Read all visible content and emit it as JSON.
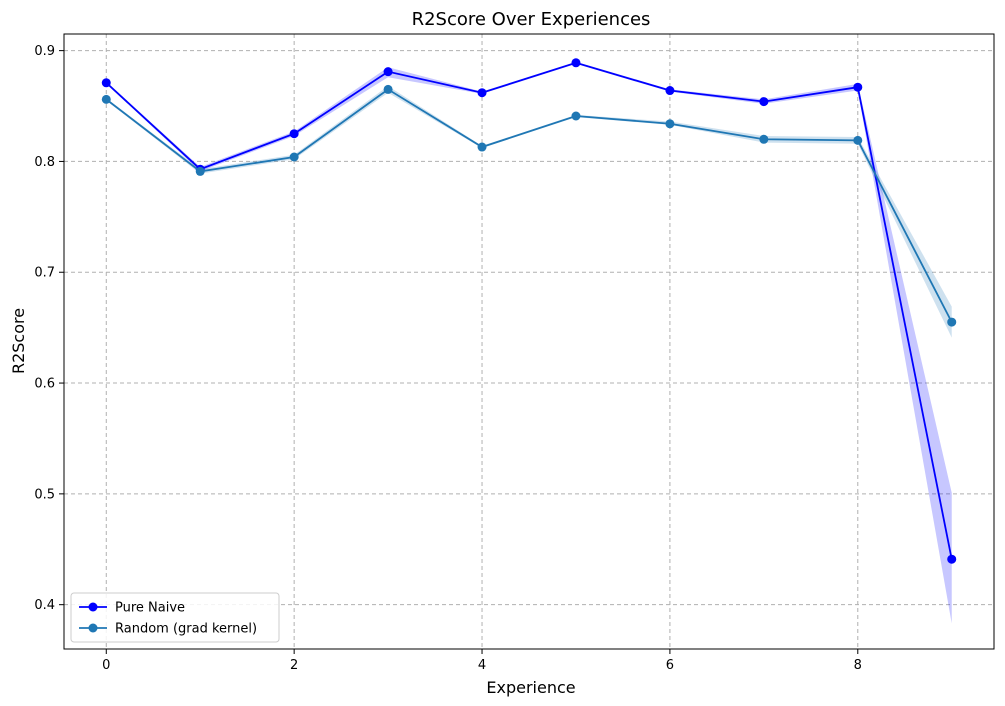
{
  "chart_data": {
    "type": "line",
    "title": "R2Score Over Experiences",
    "xlabel": "Experience",
    "ylabel": "R2Score",
    "xlim": [
      -0.45,
      9.45
    ],
    "ylim": [
      0.36,
      0.915
    ],
    "xticks": [
      0,
      2,
      4,
      6,
      8
    ],
    "yticks": [
      0.4,
      0.5,
      0.6,
      0.7,
      0.8,
      0.9
    ],
    "grid": true,
    "legend_position": "lower-left",
    "x": [
      0,
      1,
      2,
      3,
      4,
      5,
      6,
      7,
      8,
      9
    ],
    "series": [
      {
        "name": "Pure Naive",
        "color": "#0000ff",
        "band_color": "#0000ff",
        "values": [
          0.871,
          0.793,
          0.825,
          0.881,
          0.862,
          0.889,
          0.864,
          0.854,
          0.867,
          0.441
        ],
        "lower": [
          0.87,
          0.791,
          0.823,
          0.876,
          0.861,
          0.888,
          0.863,
          0.852,
          0.864,
          0.383
        ],
        "upper": [
          0.872,
          0.795,
          0.827,
          0.885,
          0.863,
          0.89,
          0.865,
          0.856,
          0.87,
          0.501
        ]
      },
      {
        "name": "Random (grad kernel)",
        "color": "#1f77b4",
        "band_color": "#1f77b4",
        "values": [
          0.856,
          0.791,
          0.804,
          0.865,
          0.813,
          0.841,
          0.834,
          0.82,
          0.819,
          0.655
        ],
        "lower": [
          0.855,
          0.789,
          0.802,
          0.862,
          0.812,
          0.84,
          0.833,
          0.817,
          0.816,
          0.641
        ],
        "upper": [
          0.857,
          0.793,
          0.806,
          0.868,
          0.814,
          0.842,
          0.836,
          0.823,
          0.822,
          0.669
        ]
      }
    ]
  }
}
